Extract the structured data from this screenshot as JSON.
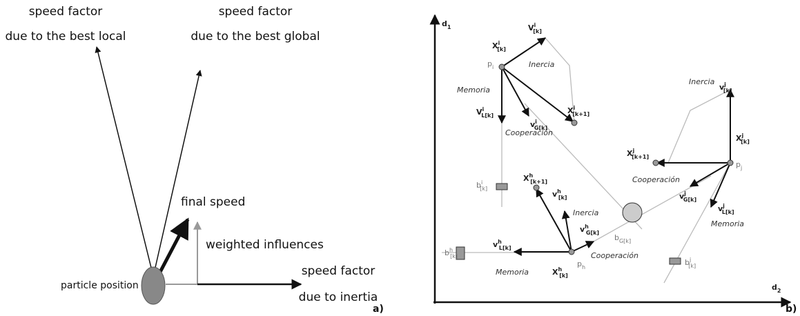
{
  "panel_a": {
    "best_local": [
      "speed factor",
      "due to the best local"
    ],
    "best_global": [
      "speed factor",
      "due to the best global"
    ],
    "final_speed": "final speed",
    "weighted": "weighted influences",
    "particle": "particle position",
    "inertia": [
      "speed factor",
      "due to inertia"
    ],
    "tag": "a)"
  },
  "panel_b": {
    "axis_y": {
      "base": "d",
      "sub": "1"
    },
    "axis_x": {
      "base": "d",
      "sub": "2"
    },
    "tag": "b)",
    "words": [
      "Inercia",
      "Memoria",
      "Cooperación",
      "Inercia",
      "Memoria",
      "Cooperación",
      "Inercia",
      "Cooperación",
      "Memoria"
    ],
    "symbols": [
      {
        "base": "X",
        "sup": "i",
        "sub": "[k]"
      },
      {
        "base": "V",
        "sup": "i",
        "sub": "[k]"
      },
      {
        "base": "p",
        "sub": "i"
      },
      {
        "base": "V",
        "sup": "i",
        "sub": "L[k]"
      },
      {
        "base": "v",
        "sup": "i",
        "sub": "G[k]"
      },
      {
        "base": "X",
        "sup": "i",
        "sub": "[k+1]"
      },
      {
        "base": "b",
        "sup": "i",
        "sub": "[k]"
      },
      {
        "base": "X",
        "sup": "h",
        "sub": "[k+1]"
      },
      {
        "base": "v",
        "sup": "h",
        "sub": "[k]"
      },
      {
        "base": "v",
        "sup": "h",
        "sub": "G[k]"
      },
      {
        "base": "v",
        "sup": "h",
        "sub": "L[k]"
      },
      {
        "base": "b",
        "sup": "h",
        "sub": "[k]"
      },
      {
        "base": "X",
        "sup": "h",
        "sub": "[k]"
      },
      {
        "base": "p",
        "sub": "h"
      },
      {
        "base": "b",
        "sub": "G[k]"
      },
      {
        "base": "v",
        "sup": "j",
        "sub": "[k]"
      },
      {
        "base": "X",
        "sup": "j",
        "sub": "[k]"
      },
      {
        "base": "X",
        "sup": "j",
        "sub": "[k+1]"
      },
      {
        "base": "p",
        "sub": "j"
      },
      {
        "base": "v",
        "sup": "j",
        "sub": "G[k]"
      },
      {
        "base": "v",
        "sup": "j",
        "sub": "L[k]"
      },
      {
        "base": "b",
        "sup": "j",
        "sub": "[k]"
      }
    ]
  }
}
